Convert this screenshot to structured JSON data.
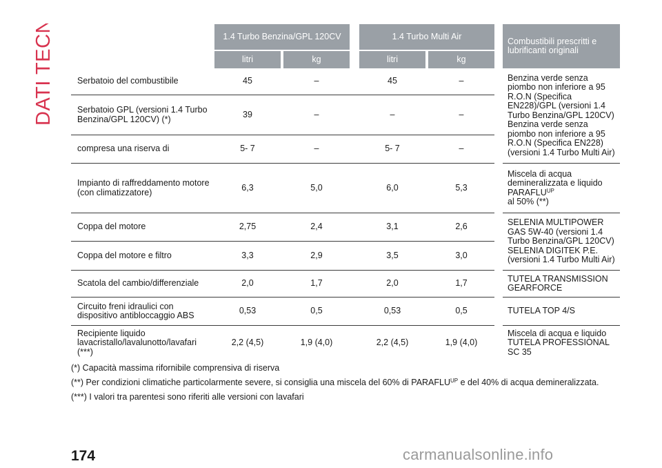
{
  "section_title": "DATI TECNICI",
  "header": {
    "col_group_1": "1.4 Turbo Benzina/GPL 120CV",
    "col_group_2": "1.4 Turbo Multi Air",
    "col_right": "Combustibili prescritti e lubrificanti originali",
    "unit_litri": "litri",
    "unit_kg": "kg"
  },
  "rows": [
    {
      "label": "Serbatoio del combustibile",
      "v1": "45",
      "v2": "–",
      "v3": "45",
      "v4": "–"
    },
    {
      "label": "Serbatoio GPL (versioni 1.4 Turbo Benzina/GPL 120CV) (*)",
      "v1": "39",
      "v2": "–",
      "v3": "–",
      "v4": "–"
    },
    {
      "label": "compresa una riserva di",
      "v1": "5- 7",
      "v2": "–",
      "v3": "5- 7",
      "v4": "–"
    },
    {
      "label": "Impianto di raffreddamento motore (con climatizzatore)",
      "v1": "6,3",
      "v2": "5,0",
      "v3": "6,0",
      "v4": "5,3"
    },
    {
      "label": "Coppa del motore",
      "v1": "2,75",
      "v2": "2,4",
      "v3": "3,1",
      "v4": "2,6"
    },
    {
      "label": "Coppa del motore e filtro",
      "v1": "3,3",
      "v2": "2,9",
      "v3": "3,5",
      "v4": "3,0"
    },
    {
      "label": "Scatola del cambio/differenziale",
      "v1": "2,0",
      "v2": "1,7",
      "v3": "2,0",
      "v4": "1,7"
    },
    {
      "label": "Circuito freni idraulici con dispositivo antibloccaggio ABS",
      "v1": "0,53",
      "v2": "0,5",
      "v3": "0,53",
      "v4": "0,5"
    },
    {
      "label": "Recipiente liquido lavacristallo/lavalunotto/lavafari (***)",
      "v1": "2,2 (4,5)",
      "v2": "1,9 (4,0)",
      "v3": "2,2 (4,5)",
      "v4": "1,9 (4,0)"
    }
  ],
  "right_texts": {
    "fuel": "Benzina verde senza piombo non inferiore a 95 R.O.N (Specifica EN228)/GPL (versioni 1.4 Turbo Benzina/GPL 120CV) Benzina verde senza piombo non inferiore a 95 R.O.N (Specifica EN228) (versioni 1.4 Turbo Multi Air)",
    "coolant_a": "Miscela di acqua demineralizzata e liquido PARAFLU",
    "coolant_sup": "UP",
    "coolant_b": "al 50% (**)",
    "oil": "SELENIA MULTIPOWER GAS 5W-40 (versioni 1.4 Turbo Benzina/GPL 120CV) SELENIA DIGITEK P.E. (versioni 1.4 Turbo Multi Air)",
    "gearbox": "TUTELA TRANSMISSION GEARFORCE",
    "brakes": "TUTELA TOP 4/S",
    "washer": "Miscela di acqua e liquido TUTELA PROFESSIONAL SC 35"
  },
  "footnotes": {
    "f1": "(*) Capacità massima rifornibile comprensiva di riserva",
    "f2a": "(**) Per condizioni climatiche particolarmente severe, si consiglia una miscela del 60% di PARAFLU",
    "f2sup": "UP",
    "f2b": " e del 40% di acqua demineralizzata.",
    "f3": "(***) I valori tra parentesi sono riferiti alle versioni con lavafari"
  },
  "page_number": "174",
  "watermark": "carmanualsonline.info",
  "colors": {
    "accent": "#d8334f",
    "header_bg": "#9aa0a6"
  }
}
